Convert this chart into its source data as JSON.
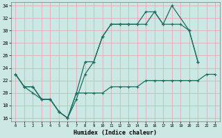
{
  "title": "",
  "xlabel": "Humidex (Indice chaleur)",
  "background_color": "#cce8e4",
  "grid_color": "#e8a0a8",
  "line_color": "#1a6e5e",
  "xlim": [
    -0.5,
    23.5
  ],
  "ylim": [
    15.5,
    34.5
  ],
  "xtick_labels": [
    "0",
    "1",
    "2",
    "3",
    "4",
    "5",
    "6",
    "7",
    "8",
    "9",
    "10",
    "11",
    "12",
    "13",
    "14",
    "15",
    "16",
    "17",
    "18",
    "19",
    "20",
    "21",
    "22",
    "23"
  ],
  "ytick_labels": [
    "16",
    "18",
    "20",
    "22",
    "24",
    "26",
    "28",
    "30",
    "32",
    "34"
  ],
  "ytick_vals": [
    16,
    18,
    20,
    22,
    24,
    26,
    28,
    30,
    32,
    34
  ],
  "line1_x": [
    0,
    1,
    2,
    3,
    4,
    5,
    6,
    7,
    8,
    9,
    10,
    11,
    12,
    13,
    14,
    15,
    16,
    17,
    18,
    20,
    21
  ],
  "line1_y": [
    23,
    21,
    21,
    19,
    19,
    17,
    16,
    20,
    25,
    25,
    29,
    31,
    31,
    31,
    31,
    33,
    33,
    31,
    34,
    30,
    25
  ],
  "line2_x": [
    0,
    1,
    2,
    3,
    4,
    5,
    6,
    7,
    8,
    9,
    10,
    11,
    12,
    13,
    14,
    15,
    16,
    17,
    18,
    19,
    20,
    21
  ],
  "line2_y": [
    23,
    21,
    21,
    19,
    19,
    17,
    16,
    19,
    23,
    25,
    29,
    31,
    31,
    31,
    31,
    31,
    33,
    31,
    31,
    31,
    30,
    25
  ],
  "line3_x": [
    0,
    1,
    2,
    3,
    4,
    5,
    6,
    7,
    8,
    9,
    10,
    11,
    12,
    13,
    14,
    15,
    16,
    17,
    18,
    19,
    20,
    21,
    22,
    23
  ],
  "line3_y": [
    23,
    21,
    20,
    19,
    19,
    17,
    16,
    20,
    20,
    20,
    20,
    21,
    21,
    21,
    21,
    22,
    22,
    22,
    22,
    22,
    22,
    22,
    23,
    23
  ]
}
